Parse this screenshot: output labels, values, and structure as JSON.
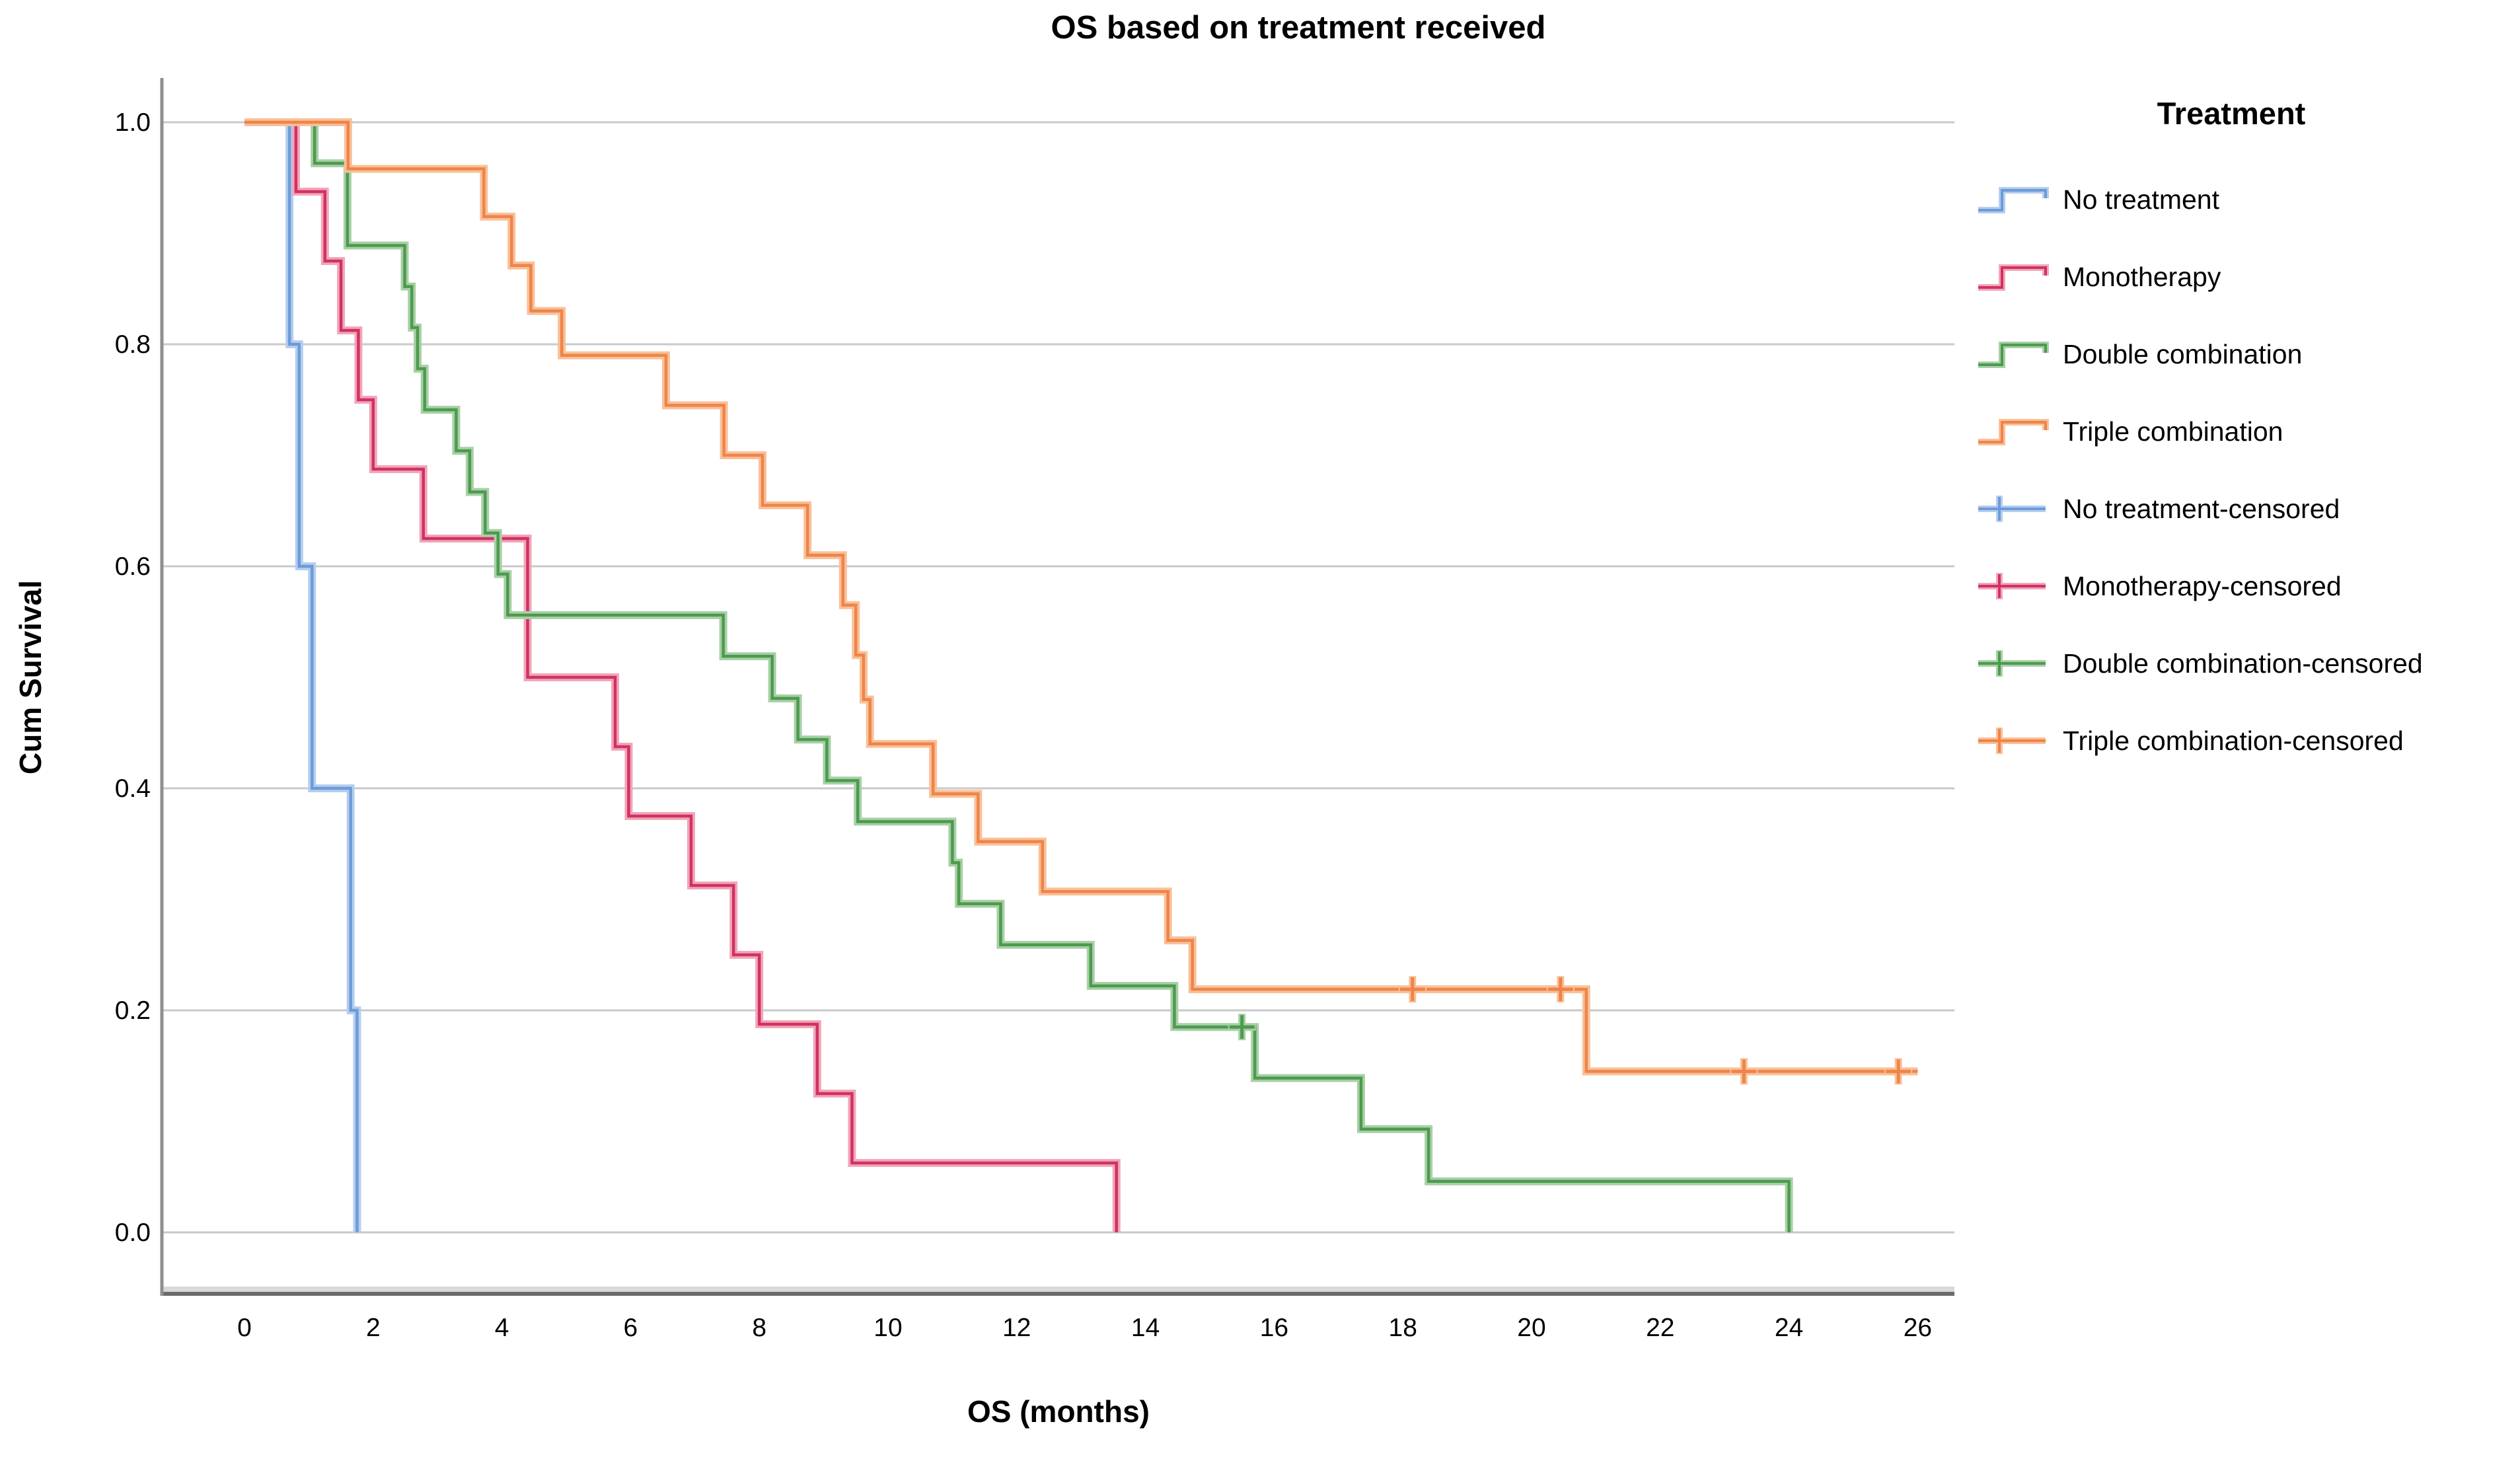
{
  "title": "OS based on treatment received",
  "x_axis": {
    "label": "OS (months)",
    "ticks": [
      "0",
      "2",
      "4",
      "6",
      "8",
      "10",
      "12",
      "14",
      "16",
      "18",
      "20",
      "22",
      "24",
      "26"
    ]
  },
  "y_axis": {
    "label": "Cum Survival",
    "ticks": [
      "1.0",
      "0.8",
      "0.6",
      "0.4",
      "0.2",
      "0.0"
    ]
  },
  "legend": {
    "title": "Treatment",
    "items": [
      {
        "label": "No treatment",
        "series": "no-treatment",
        "type": "step"
      },
      {
        "label": "Monotherapy",
        "series": "monotherapy",
        "type": "step"
      },
      {
        "label": "Double combination",
        "series": "double-combination",
        "type": "step"
      },
      {
        "label": "Triple combination",
        "series": "triple-combination",
        "type": "step"
      },
      {
        "label": "No treatment-censored",
        "series": "no-treatment",
        "type": "censored"
      },
      {
        "label": "Monotherapy-censored",
        "series": "monotherapy",
        "type": "censored"
      },
      {
        "label": "Double combination-censored",
        "series": "double-combination",
        "type": "censored"
      },
      {
        "label": "Triple combination-censored",
        "series": "triple-combination",
        "type": "censored"
      }
    ]
  },
  "chart_data": {
    "type": "km-step-line",
    "title": "OS based on treatment received",
    "xlabel": "OS (months)",
    "ylabel": "Cum Survival",
    "xlim": [
      0,
      26
    ],
    "ylim": [
      0.0,
      1.0
    ],
    "grid": "horizontal-only",
    "legend_position": "right",
    "series": [
      {
        "name": "No treatment",
        "slug": "no-treatment",
        "color": "#6D9BD8",
        "halo": "#B5CEEF",
        "start": [
          0,
          1.0
        ],
        "steps": [
          [
            0.7,
            0.8
          ],
          [
            0.85,
            0.6
          ],
          [
            1.05,
            0.4
          ],
          [
            1.65,
            0.2
          ],
          [
            1.75,
            0.0
          ]
        ],
        "end": 1.75,
        "censored": []
      },
      {
        "name": "Monotherapy",
        "slug": "monotherapy",
        "color": "#D23260",
        "halo": "#F0A6BB",
        "start": [
          0,
          1.0
        ],
        "steps": [
          [
            0.8,
            0.9375
          ],
          [
            1.25,
            0.875
          ],
          [
            1.5,
            0.8125
          ],
          [
            1.77,
            0.75
          ],
          [
            2.0,
            0.6875
          ],
          [
            2.78,
            0.625
          ],
          [
            4.4,
            0.5
          ],
          [
            5.76,
            0.4375
          ],
          [
            5.97,
            0.375
          ],
          [
            6.94,
            0.3125
          ],
          [
            7.6,
            0.25
          ],
          [
            8.0,
            0.1875
          ],
          [
            8.9,
            0.125
          ],
          [
            9.44,
            0.0625
          ],
          [
            13.55,
            0.0
          ]
        ],
        "end": 13.55,
        "censored": []
      },
      {
        "name": "Double combination",
        "slug": "double-combination",
        "color": "#4C9B4E",
        "halo": "#A9CFA7",
        "start": [
          0,
          1.0
        ],
        "steps": [
          [
            1.09,
            0.963
          ],
          [
            1.6,
            0.889
          ],
          [
            2.49,
            0.852
          ],
          [
            2.6,
            0.815
          ],
          [
            2.69,
            0.778
          ],
          [
            2.8,
            0.741
          ],
          [
            3.29,
            0.704
          ],
          [
            3.5,
            0.667
          ],
          [
            3.74,
            0.63
          ],
          [
            3.94,
            0.593
          ],
          [
            4.09,
            0.556
          ],
          [
            7.44,
            0.519
          ],
          [
            8.2,
            0.481
          ],
          [
            8.6,
            0.444
          ],
          [
            9.05,
            0.407
          ],
          [
            9.53,
            0.37
          ],
          [
            11.0,
            0.333
          ],
          [
            11.1,
            0.296
          ],
          [
            11.75,
            0.259
          ],
          [
            13.15,
            0.222
          ],
          [
            14.45,
            0.185
          ],
          [
            15.7,
            0.139
          ],
          [
            17.35,
            0.093
          ],
          [
            18.4,
            0.046
          ],
          [
            24.0,
            0.0
          ]
        ],
        "end": 24.0,
        "censored": [
          [
            15.5,
            0.185
          ]
        ]
      },
      {
        "name": "Triple combination",
        "slug": "triple-combination",
        "color": "#EF8449",
        "halo": "#F8C199",
        "start": [
          0,
          1.0
        ],
        "steps": [
          [
            1.61,
            0.958
          ],
          [
            3.72,
            0.915
          ],
          [
            4.15,
            0.871
          ],
          [
            4.45,
            0.83
          ],
          [
            4.93,
            0.79
          ],
          [
            6.55,
            0.745
          ],
          [
            7.45,
            0.7
          ],
          [
            8.05,
            0.655
          ],
          [
            8.75,
            0.61
          ],
          [
            9.3,
            0.565
          ],
          [
            9.5,
            0.52
          ],
          [
            9.62,
            0.48
          ],
          [
            9.72,
            0.44
          ],
          [
            10.7,
            0.395
          ],
          [
            11.4,
            0.352
          ],
          [
            12.4,
            0.307
          ],
          [
            14.35,
            0.263
          ],
          [
            14.73,
            0.219
          ],
          [
            20.85,
            0.145
          ]
        ],
        "end": 26.0,
        "censored": [
          [
            18.15,
            0.219
          ],
          [
            20.45,
            0.219
          ],
          [
            23.3,
            0.145
          ],
          [
            25.7,
            0.145
          ]
        ]
      }
    ],
    "colors": {
      "gridline": "#C9C9C9",
      "axis_line": "#8F8F8F",
      "frame_light": "#D9D9D9",
      "frame_dark": "#6B6B6B",
      "text": "#000000"
    }
  }
}
